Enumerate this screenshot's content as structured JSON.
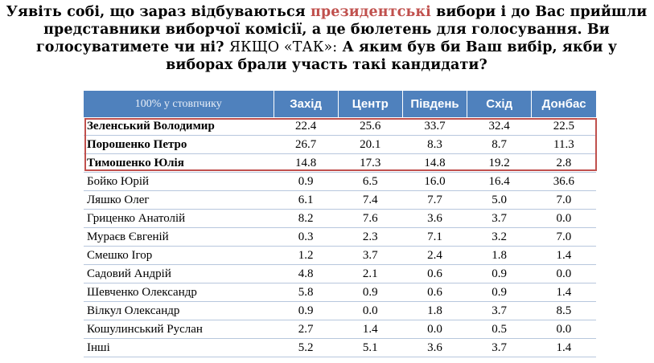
{
  "question": {
    "part1": "Уявіть собі, що зараз відбуваються ",
    "highlight": "президентські",
    "part2": " вибори і до Вас прийшли представники виборчої комісії, а це бюлетень для голосування. Ви голосуватимете чи ні? ",
    "condition": "ЯКЩО «ТАК»:",
    "part3": " А яким був би Ваш вибір, якби у виборах брали участь такі кандидати?"
  },
  "colors": {
    "header_bg": "#4f81bd",
    "highlight": "#c0504d"
  },
  "chart_data": {
    "type": "table",
    "corner_label": "100% у стовпчику",
    "columns": [
      "Захід",
      "Центр",
      "Південь",
      "Схід",
      "Донбас"
    ],
    "rows": [
      {
        "name": "Зеленський Володимир",
        "values": [
          "22.4",
          "25.6",
          "33.7",
          "32.4",
          "22.5"
        ],
        "highlighted": true
      },
      {
        "name": "Порошенко Петро",
        "values": [
          "26.7",
          "20.1",
          "8.3",
          "8.7",
          "11.3"
        ],
        "highlighted": true
      },
      {
        "name": "Тимошенко Юлія",
        "values": [
          "14.8",
          "17.3",
          "14.8",
          "19.2",
          "2.8"
        ],
        "highlighted": true
      },
      {
        "name": "Бойко Юрій",
        "values": [
          "0.9",
          "6.5",
          "16.0",
          "16.4",
          "36.6"
        ],
        "highlighted": false
      },
      {
        "name": "Ляшко Олег",
        "values": [
          "6.1",
          "7.4",
          "7.7",
          "5.0",
          "7.0"
        ],
        "highlighted": false
      },
      {
        "name": "Гриценко Анатолій",
        "values": [
          "8.2",
          "7.6",
          "3.6",
          "3.7",
          "0.0"
        ],
        "highlighted": false
      },
      {
        "name": "Мураєв Євгеній",
        "values": [
          "0.3",
          "2.3",
          "7.1",
          "3.2",
          "7.0"
        ],
        "highlighted": false
      },
      {
        "name": "Смешко Ігор",
        "values": [
          "1.2",
          "3.7",
          "2.4",
          "1.8",
          "1.4"
        ],
        "highlighted": false
      },
      {
        "name": "Садовий Андрій",
        "values": [
          "4.8",
          "2.1",
          "0.6",
          "0.9",
          "0.0"
        ],
        "highlighted": false
      },
      {
        "name": "Шевченко Олександр",
        "values": [
          "5.8",
          "0.9",
          "0.6",
          "0.9",
          "1.4"
        ],
        "highlighted": false
      },
      {
        "name": "Вілкул Олександр",
        "values": [
          "0.9",
          "0.0",
          "1.8",
          "3.7",
          "8.5"
        ],
        "highlighted": false
      },
      {
        "name": "Кошулинський Руслан",
        "values": [
          "2.7",
          "1.4",
          "0.0",
          "0.5",
          "0.0"
        ],
        "highlighted": false
      },
      {
        "name": "Інші",
        "values": [
          "5.2",
          "5.1",
          "3.6",
          "3.7",
          "1.4"
        ],
        "highlighted": false
      }
    ]
  }
}
